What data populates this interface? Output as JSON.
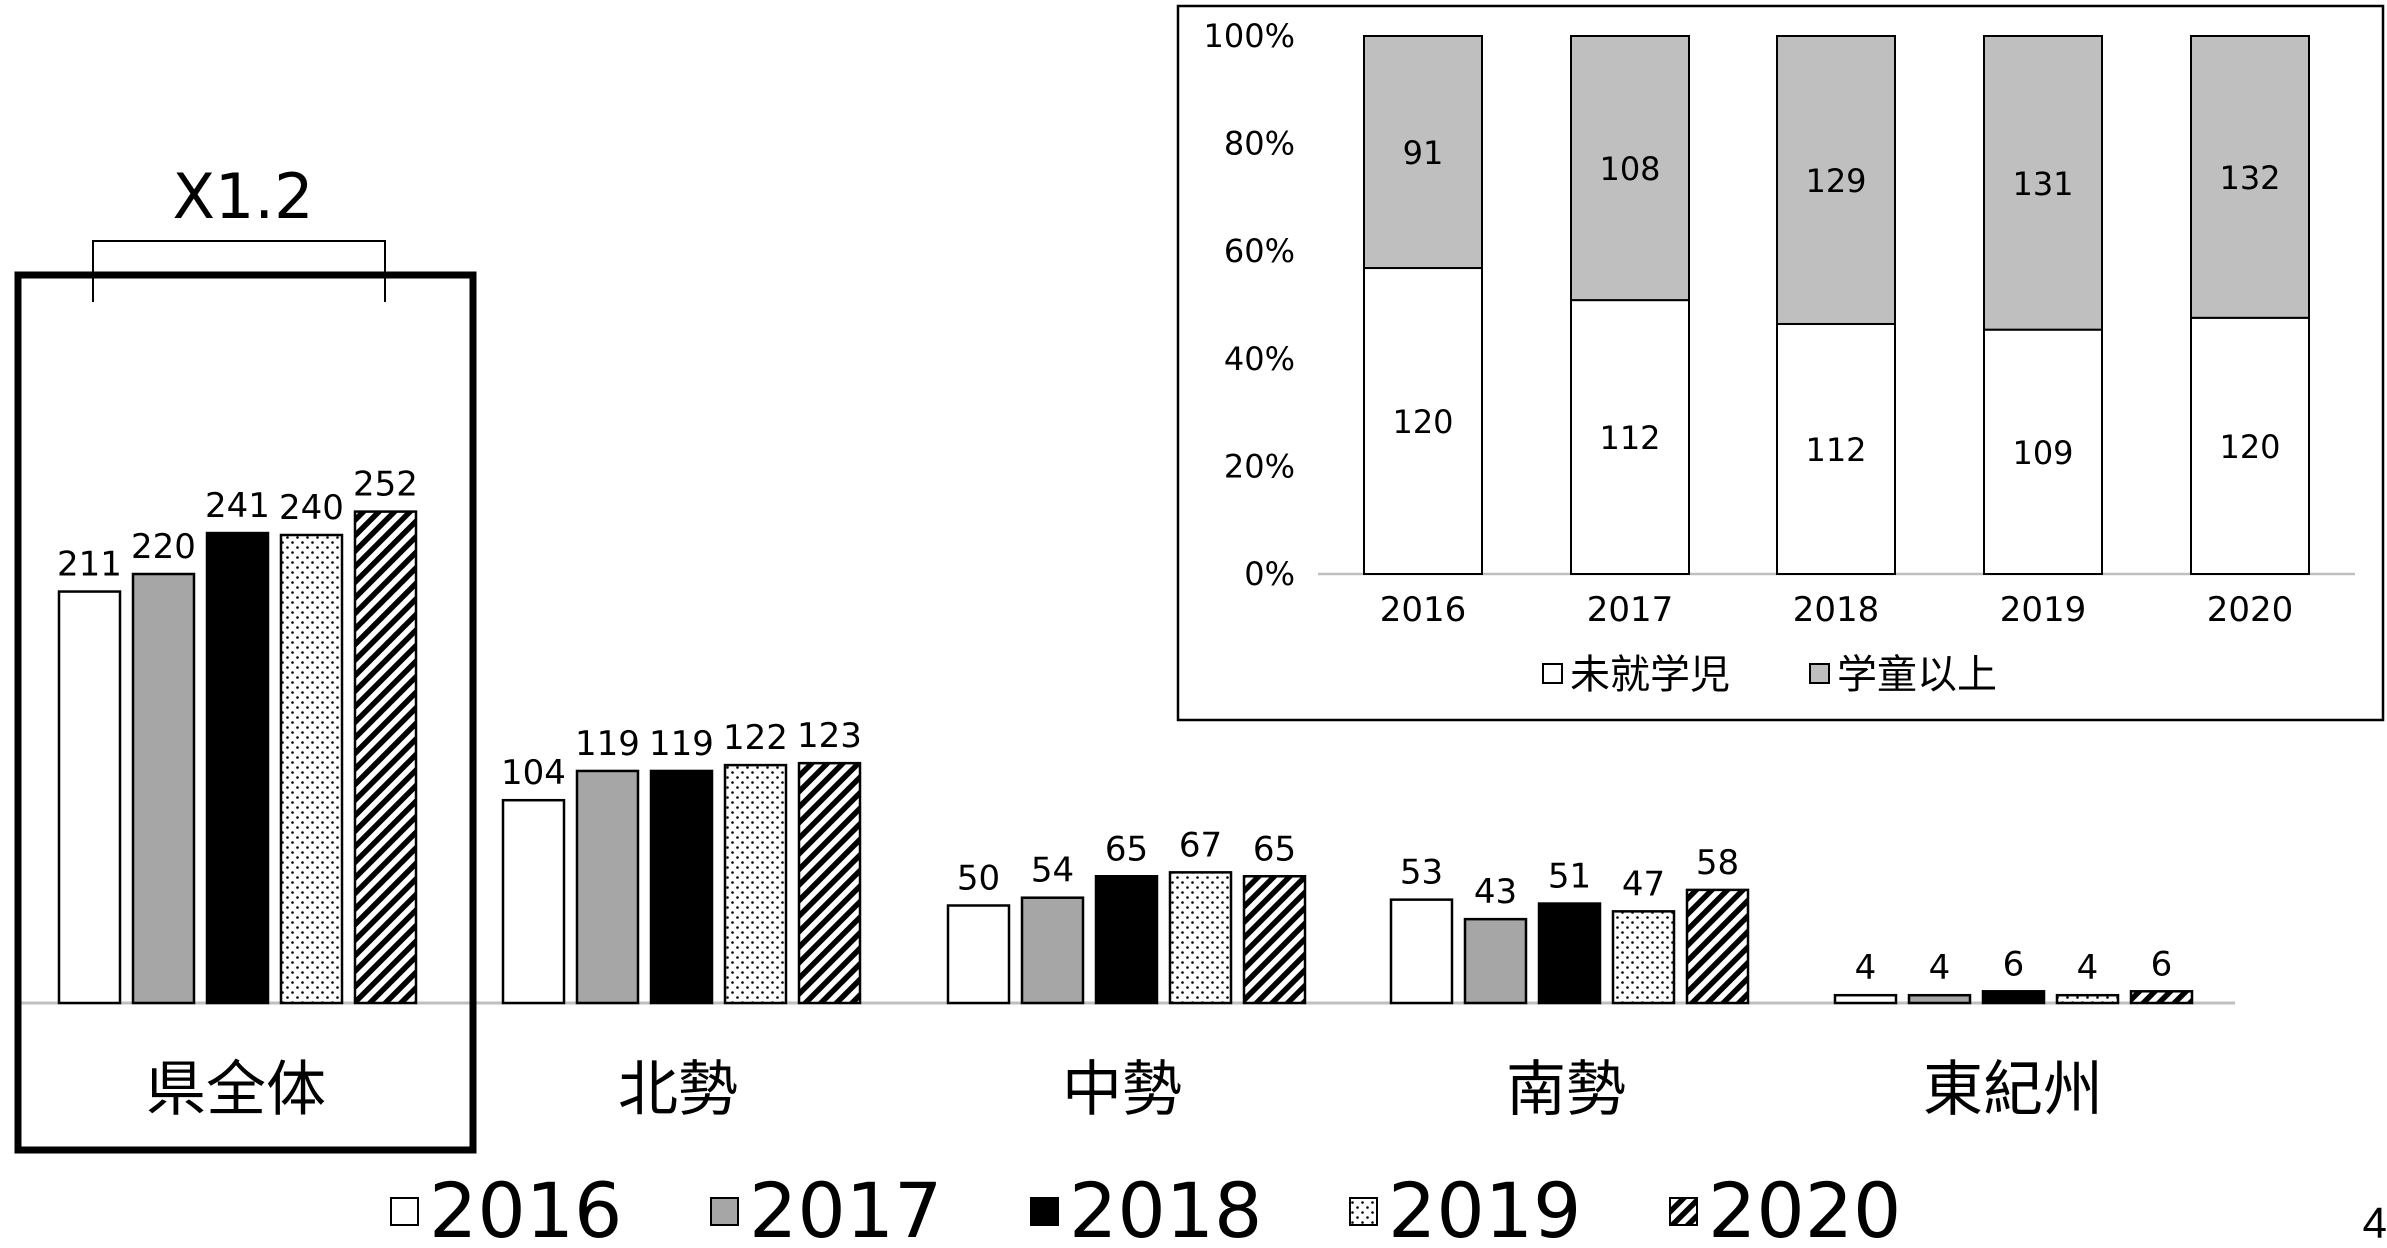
{
  "chart_data": [
    {
      "type": "bar",
      "title": "",
      "xlabel": "",
      "ylabel": "",
      "categories": [
        "県全体",
        "北勢",
        "中勢",
        "南勢",
        "東紀州"
      ],
      "series": [
        {
          "name": "2016",
          "values": [
            211,
            104,
            50,
            53,
            4
          ]
        },
        {
          "name": "2017",
          "values": [
            220,
            119,
            54,
            43,
            4
          ]
        },
        {
          "name": "2018",
          "values": [
            241,
            119,
            65,
            51,
            6
          ]
        },
        {
          "name": "2019",
          "values": [
            240,
            122,
            67,
            47,
            4
          ]
        },
        {
          "name": "2020",
          "values": [
            252,
            123,
            65,
            58,
            6
          ]
        }
      ],
      "legend_position": "bottom",
      "grid": false,
      "ylim": [
        0,
        300
      ],
      "annotation": {
        "text": "X1.2",
        "category": "県全体",
        "from_series": "2016",
        "to_series": "2020"
      },
      "highlighted_category": "県全体",
      "series_fills": [
        "white",
        "#a6a6a6",
        "#000000",
        "dotted",
        "diagonal-hatch"
      ]
    },
    {
      "type": "bar",
      "stacked": "percent",
      "title": "",
      "xlabel": "",
      "ylabel": "",
      "categories": [
        "2016",
        "2017",
        "2018",
        "2019",
        "2020"
      ],
      "series": [
        {
          "name": "未就学児",
          "values": [
            120,
            112,
            112,
            109,
            120
          ],
          "color": "#ffffff"
        },
        {
          "name": "学童以上",
          "values": [
            91,
            108,
            129,
            131,
            132
          ],
          "color": "#bfbfbf"
        }
      ],
      "yticks": [
        "0%",
        "20%",
        "40%",
        "60%",
        "80%",
        "100%"
      ],
      "ylim": [
        0,
        100
      ],
      "legend_position": "bottom",
      "grid": false
    }
  ],
  "page_number": "4"
}
